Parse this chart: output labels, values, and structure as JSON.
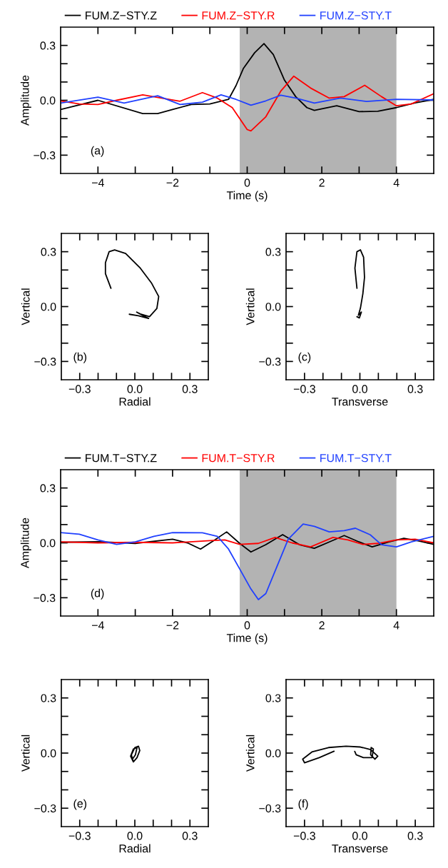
{
  "chart_data": [
    {
      "type": "line",
      "xlabel": "Time (s)",
      "ylabel": "Amplitude",
      "annotations": [
        "(a)"
      ],
      "legend": "top",
      "xlim": [
        -5,
        5
      ],
      "ylim": [
        -0.4,
        0.4
      ],
      "xticks": [
        {
          "value": -4,
          "label": "−4"
        },
        {
          "value": -3,
          "label": null
        },
        {
          "value": -2,
          "label": "−2"
        },
        {
          "value": -1,
          "label": null
        },
        {
          "value": 0,
          "label": "0"
        },
        {
          "value": 1,
          "label": null
        },
        {
          "value": 2,
          "label": "2"
        },
        {
          "value": 3,
          "label": null
        },
        {
          "value": 4,
          "label": "4"
        }
      ],
      "yticks": [
        {
          "value": -0.3,
          "label": "−0.3"
        },
        {
          "value": -0.2,
          "label": null
        },
        {
          "value": -0.1,
          "label": null
        },
        {
          "value": 0,
          "label": "0.0"
        },
        {
          "value": 0.1,
          "label": null
        },
        {
          "value": 0.2,
          "label": null
        },
        {
          "value": 0.3,
          "label": "0.3"
        }
      ],
      "bands": [
        {
          "axis": "x",
          "from": -0.2,
          "to": 4,
          "color": "#b3b3b3"
        }
      ],
      "series": [
        {
          "name": "FUM.Z−STY.Z",
          "color": "#000000",
          "x": [
            -5,
            -4,
            -2.8,
            -2.4,
            -2,
            -1.5,
            -1,
            -0.5,
            -0.3,
            -0.1,
            0.2,
            0.45,
            0.7,
            1.0,
            1.3,
            1.6,
            1.8,
            2.4,
            3.0,
            3.5,
            4.0,
            4.5,
            5
          ],
          "values": [
            -0.05,
            0.0,
            -0.073,
            -0.073,
            -0.05,
            -0.023,
            -0.02,
            0.005,
            0.08,
            0.175,
            0.26,
            0.31,
            0.25,
            0.11,
            0.02,
            -0.04,
            -0.055,
            -0.03,
            -0.062,
            -0.06,
            -0.04,
            -0.014,
            0.005
          ]
        },
        {
          "name": "FUM.Z−STY.R",
          "color": "#ff0000",
          "x": [
            -5,
            -4.5,
            -4,
            -3.5,
            -2.8,
            -2.3,
            -1.8,
            -1.2,
            -0.8,
            -0.4,
            0,
            0.1,
            0.5,
            0.9,
            1.25,
            1.7,
            2.2,
            2.6,
            3.15,
            3.6,
            4.0,
            4.4,
            5
          ],
          "values": [
            -0.003,
            -0.02,
            -0.023,
            0.0,
            0.03,
            0.012,
            -0.005,
            0.042,
            0.012,
            -0.04,
            -0.16,
            -0.167,
            -0.09,
            0.05,
            0.132,
            0.067,
            0.012,
            0.02,
            0.082,
            0.02,
            -0.03,
            -0.02,
            0.036
          ]
        },
        {
          "name": "FUM.Z−STY.T",
          "color": "#2040ff",
          "x": [
            -5,
            -4,
            -3.3,
            -2.4,
            -1.8,
            -1.2,
            -0.7,
            -0.3,
            0.1,
            0.5,
            0.9,
            1.3,
            1.8,
            2.5,
            3.2,
            4,
            5
          ],
          "values": [
            -0.015,
            0.017,
            -0.015,
            0.025,
            -0.023,
            -0.01,
            0.03,
            0.005,
            -0.027,
            -0.003,
            0.028,
            0.012,
            -0.015,
            0.012,
            -0.006,
            0.005,
            0.002
          ]
        }
      ]
    },
    {
      "type": "line",
      "xlabel": "Radial",
      "ylabel": "Vertical",
      "annotations": [
        "(b)"
      ],
      "xlim": [
        -0.4,
        0.4
      ],
      "ylim": [
        -0.4,
        0.4
      ],
      "xticks": [
        {
          "value": -0.3,
          "label": "−0.3"
        },
        {
          "value": -0.2,
          "label": null
        },
        {
          "value": -0.1,
          "label": null
        },
        {
          "value": 0,
          "label": "0.0"
        },
        {
          "value": 0.1,
          "label": null
        },
        {
          "value": 0.2,
          "label": null
        },
        {
          "value": 0.3,
          "label": "0.3"
        }
      ],
      "yticks": [
        {
          "value": -0.3,
          "label": "−0.3"
        },
        {
          "value": -0.2,
          "label": null
        },
        {
          "value": -0.1,
          "label": null
        },
        {
          "value": 0,
          "label": "0.0"
        },
        {
          "value": 0.1,
          "label": null
        },
        {
          "value": 0.2,
          "label": null
        },
        {
          "value": 0.3,
          "label": "0.3"
        }
      ],
      "series": [
        {
          "color": "#000000",
          "x": [
            -0.13,
            -0.16,
            -0.16,
            -0.14,
            -0.11,
            -0.05,
            0.03,
            0.09,
            0.13,
            0.12,
            0.08,
            0.03,
            0.01,
            0.04,
            0.075,
            0.02,
            -0.03
          ],
          "values": [
            0.1,
            0.18,
            0.24,
            0.3,
            0.31,
            0.29,
            0.21,
            0.13,
            0.055,
            -0.01,
            -0.055,
            -0.04,
            -0.03,
            -0.047,
            -0.065,
            -0.05,
            -0.042
          ]
        }
      ]
    },
    {
      "type": "line",
      "xlabel": "Transverse",
      "ylabel": "Vertical",
      "annotations": [
        "(c)"
      ],
      "xlim": [
        -0.4,
        0.4
      ],
      "ylim": [
        -0.4,
        0.4
      ],
      "xticks": [
        {
          "value": -0.3,
          "label": "−0.3"
        },
        {
          "value": -0.2,
          "label": null
        },
        {
          "value": -0.1,
          "label": null
        },
        {
          "value": 0,
          "label": "0.0"
        },
        {
          "value": 0.1,
          "label": null
        },
        {
          "value": 0.2,
          "label": null
        },
        {
          "value": 0.3,
          "label": "0.3"
        }
      ],
      "yticks": [
        {
          "value": -0.3,
          "label": "−0.3"
        },
        {
          "value": -0.2,
          "label": null
        },
        {
          "value": -0.1,
          "label": null
        },
        {
          "value": 0,
          "label": "0.0"
        },
        {
          "value": 0.1,
          "label": null
        },
        {
          "value": 0.2,
          "label": null
        },
        {
          "value": 0.3,
          "label": "0.3"
        }
      ],
      "series": [
        {
          "color": "#000000",
          "x": [
            -0.016,
            -0.027,
            -0.016,
            0.003,
            0.02,
            0.025,
            0.016,
            0.003,
            -0.008,
            0.008,
            -0.003,
            -0.016
          ],
          "values": [
            0.1,
            0.21,
            0.3,
            0.31,
            0.27,
            0.16,
            0.07,
            -0.008,
            -0.047,
            -0.03,
            -0.062,
            -0.055
          ]
        }
      ]
    },
    {
      "type": "line",
      "xlabel": "Time (s)",
      "ylabel": "Amplitude",
      "annotations": [
        "(d)"
      ],
      "legend": "top",
      "xlim": [
        -5,
        5
      ],
      "ylim": [
        -0.4,
        0.4
      ],
      "xticks": [
        {
          "value": -4,
          "label": "−4"
        },
        {
          "value": -3,
          "label": null
        },
        {
          "value": -2,
          "label": "−2"
        },
        {
          "value": -1,
          "label": null
        },
        {
          "value": 0,
          "label": "0"
        },
        {
          "value": 1,
          "label": null
        },
        {
          "value": 2,
          "label": "2"
        },
        {
          "value": 3,
          "label": null
        },
        {
          "value": 4,
          "label": "4"
        }
      ],
      "yticks": [
        {
          "value": -0.3,
          "label": "−0.3"
        },
        {
          "value": -0.2,
          "label": null
        },
        {
          "value": -0.1,
          "label": null
        },
        {
          "value": 0,
          "label": "0.0"
        },
        {
          "value": 0.1,
          "label": null
        },
        {
          "value": 0.2,
          "label": null
        },
        {
          "value": 0.3,
          "label": "0.3"
        }
      ],
      "bands": [
        {
          "axis": "x",
          "from": -0.2,
          "to": 4,
          "color": "#b3b3b3"
        }
      ],
      "series": [
        {
          "name": "FUM.T−STY.Z",
          "color": "#000000",
          "x": [
            -5,
            -4,
            -3,
            -2,
            -1.6,
            -1.25,
            -0.9,
            -0.55,
            -0.2,
            0.1,
            0.5,
            0.95,
            1.4,
            1.8,
            2.2,
            2.6,
            3.0,
            3.35,
            3.8,
            4.2,
            4.6,
            5
          ],
          "values": [
            0.003,
            0.006,
            -0.003,
            0.02,
            0.0,
            -0.034,
            0.012,
            0.06,
            -0.003,
            -0.05,
            -0.01,
            0.045,
            -0.01,
            -0.03,
            0.005,
            0.04,
            0.005,
            -0.022,
            0.005,
            0.025,
            0.01,
            -0.008
          ]
        },
        {
          "name": "FUM.T−STY.R",
          "color": "#ff0000",
          "x": [
            -5,
            -4,
            -3,
            -2,
            -1,
            -0.6,
            -0.2,
            0.3,
            0.75,
            1.2,
            1.7,
            2.3,
            2.7,
            3.1,
            3.5,
            4.0,
            4.5,
            5
          ],
          "values": [
            0.005,
            0.0,
            0.003,
            0.0,
            0.012,
            0.016,
            -0.008,
            -0.003,
            0.03,
            0.0,
            -0.022,
            0.03,
            0.016,
            -0.008,
            -0.003,
            0.016,
            0.02,
            0.0
          ]
        },
        {
          "name": "FUM.T−STY.T",
          "color": "#2040ff",
          "x": [
            -5,
            -4.5,
            -4,
            -3.5,
            -3,
            -2.5,
            -2,
            -1.2,
            -0.8,
            -0.5,
            -0.2,
            0.1,
            0.3,
            0.5,
            0.8,
            1.1,
            1.5,
            1.8,
            2.2,
            2.6,
            2.9,
            3.3,
            3.6,
            4.0,
            4.4,
            5
          ],
          "values": [
            0.056,
            0.047,
            0.016,
            -0.008,
            0.005,
            0.036,
            0.056,
            0.055,
            0.036,
            -0.034,
            -0.143,
            -0.252,
            -0.31,
            -0.277,
            -0.128,
            0.02,
            0.103,
            0.09,
            0.06,
            0.067,
            0.08,
            0.044,
            -0.01,
            -0.022,
            0.005,
            0.036
          ]
        }
      ]
    },
    {
      "type": "line",
      "xlabel": "Radial",
      "ylabel": "Vertical",
      "annotations": [
        "(e)"
      ],
      "xlim": [
        -0.4,
        0.4
      ],
      "ylim": [
        -0.4,
        0.4
      ],
      "xticks": [
        {
          "value": -0.3,
          "label": "−0.3"
        },
        {
          "value": -0.2,
          "label": null
        },
        {
          "value": -0.1,
          "label": null
        },
        {
          "value": 0,
          "label": "0.0"
        },
        {
          "value": 0.1,
          "label": null
        },
        {
          "value": 0.2,
          "label": null
        },
        {
          "value": 0.3,
          "label": "0.3"
        }
      ],
      "yticks": [
        {
          "value": -0.3,
          "label": "−0.3"
        },
        {
          "value": -0.2,
          "label": null
        },
        {
          "value": -0.1,
          "label": null
        },
        {
          "value": 0,
          "label": "0.0"
        },
        {
          "value": 0.1,
          "label": null
        },
        {
          "value": 0.2,
          "label": null
        },
        {
          "value": 0.3,
          "label": "0.3"
        }
      ],
      "series": [
        {
          "color": "#000000",
          "x": [
            -0.008,
            -0.019,
            0.0,
            0.02,
            0.027,
            0.012,
            -0.008,
            -0.023,
            -0.008,
            0.012,
            0.003,
            -0.013
          ],
          "values": [
            -0.048,
            -0.01,
            0.03,
            0.037,
            0.014,
            -0.025,
            -0.048,
            -0.017,
            0.022,
            0.03,
            -0.01,
            -0.033
          ]
        }
      ]
    },
    {
      "type": "line",
      "xlabel": "Transverse",
      "ylabel": "Vertical",
      "annotations": [
        "(f)"
      ],
      "xlim": [
        -0.4,
        0.4
      ],
      "ylim": [
        -0.4,
        0.4
      ],
      "xticks": [
        {
          "value": -0.3,
          "label": "−0.3"
        },
        {
          "value": -0.2,
          "label": null
        },
        {
          "value": -0.1,
          "label": null
        },
        {
          "value": 0,
          "label": "0.0"
        },
        {
          "value": 0.1,
          "label": null
        },
        {
          "value": 0.2,
          "label": null
        },
        {
          "value": 0.3,
          "label": "0.3"
        }
      ],
      "yticks": [
        {
          "value": -0.3,
          "label": "−0.3"
        },
        {
          "value": -0.2,
          "label": null
        },
        {
          "value": -0.1,
          "label": null
        },
        {
          "value": 0,
          "label": "0.0"
        },
        {
          "value": 0.1,
          "label": null
        },
        {
          "value": 0.2,
          "label": null
        },
        {
          "value": 0.3,
          "label": "0.3"
        }
      ],
      "series": [
        {
          "color": "#000000",
          "x": [
            -0.14,
            -0.22,
            -0.3,
            -0.31,
            -0.26,
            -0.17,
            -0.075,
            0.003,
            0.058,
            0.097,
            0.081,
            0.058,
            0.061,
            0.073,
            0.066,
            0.019,
            -0.02,
            -0.028
          ],
          "values": [
            0.01,
            -0.025,
            -0.053,
            -0.033,
            0.006,
            0.03,
            0.037,
            0.033,
            0.019,
            -0.017,
            -0.033,
            -0.009,
            0.03,
            0.022,
            -0.025,
            -0.025,
            -0.009,
            0.009
          ]
        }
      ]
    }
  ]
}
